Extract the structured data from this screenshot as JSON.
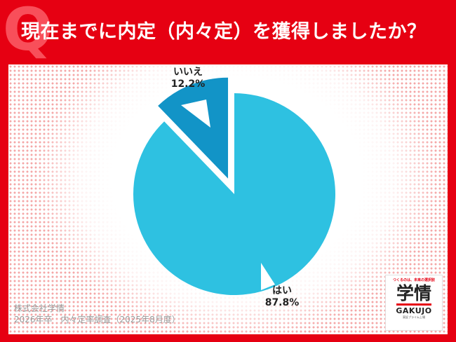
{
  "header": {
    "q_mark": "Q",
    "question": "現在までに内定（内々定）を獲得しましたか？"
  },
  "chart_data": {
    "type": "pie",
    "title": "現在までに内定（内々定）を獲得しましたか？",
    "start": "12 o'clock",
    "direction": "clockwise",
    "slices": [
      {
        "label": "はい",
        "value": 87.8,
        "value_label": "87.8%",
        "color": "#2ec1e1"
      },
      {
        "label": "いいえ",
        "value": 12.2,
        "value_label": "12.2%",
        "color": "#1294c7",
        "exploded": true
      }
    ]
  },
  "source": {
    "company": "株式会社学情",
    "survey": "2026年卒　内々定率調査（2025年8月度）"
  },
  "logo": {
    "tagline": "つくるのは、未来の選択肢",
    "mark": "学情",
    "latin": "GAKUJO",
    "sub": "東証プライム上場"
  }
}
